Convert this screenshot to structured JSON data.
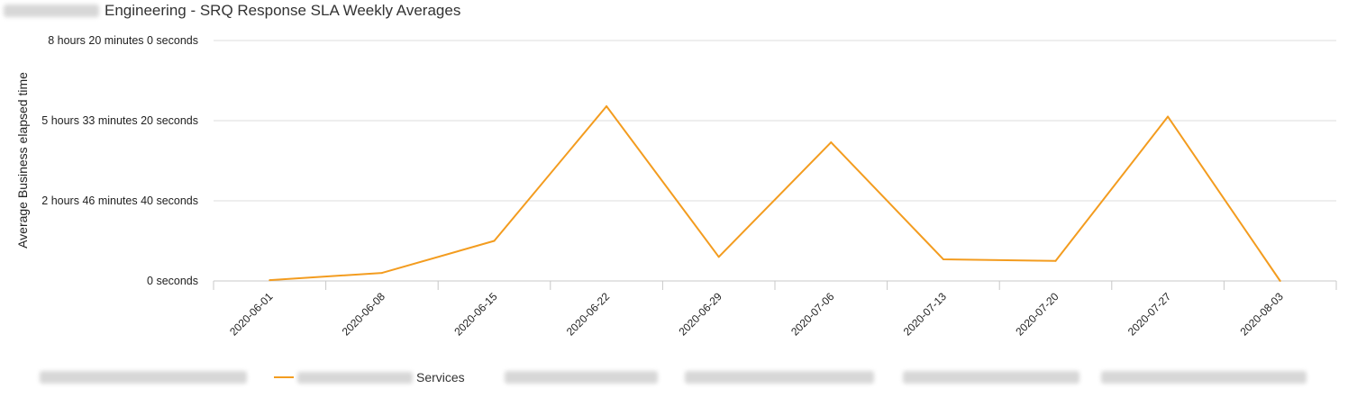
{
  "title_suffix": "Engineering - SRQ Response SLA Weekly Averages",
  "colors": {
    "series": "#f39c1f",
    "grid": "#dcdcdc",
    "axis": "#c8c8c8",
    "text": "#222222"
  },
  "chart_data": {
    "type": "line",
    "title": "Engineering - SRQ Response SLA Weekly Averages",
    "ylabel": "Average Business elapsed time",
    "xlabel": "",
    "y_unit": "seconds",
    "ylim": [
      0,
      30000
    ],
    "yticks": [
      {
        "value": 0,
        "label": "0 seconds"
      },
      {
        "value": 10000,
        "label": "2 hours 46 minutes 40 seconds"
      },
      {
        "value": 20000,
        "label": "5 hours 33 minutes 20 seconds"
      },
      {
        "value": 30000,
        "label": "8 hours 20 minutes 0 seconds"
      }
    ],
    "categories": [
      "2020-06-01",
      "2020-06-08",
      "2020-06-15",
      "2020-06-22",
      "2020-06-29",
      "2020-07-06",
      "2020-07-13",
      "2020-07-20",
      "2020-07-27",
      "2020-08-03"
    ],
    "series": [
      {
        "name": "Services",
        "values": [
          100,
          1000,
          5000,
          21800,
          3000,
          17300,
          2700,
          2500,
          20500,
          0
        ]
      }
    ],
    "grid": true,
    "legend_position": "bottom"
  }
}
